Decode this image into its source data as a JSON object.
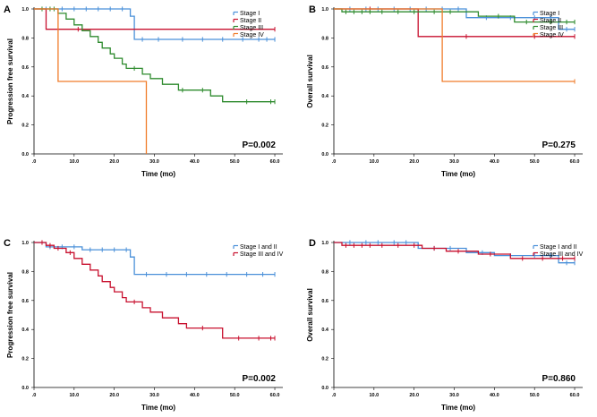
{
  "chart_data": [
    {
      "type": "line",
      "panel": "A",
      "xlabel": "Time (mo)",
      "ylabel": "Progression free survival",
      "xlim": [
        0,
        62
      ],
      "ylim": [
        0,
        1.0
      ],
      "x_ticks": [
        0,
        10,
        20,
        30,
        40,
        50,
        60
      ],
      "x_tick_labels": [
        ".0",
        "10.0",
        "20.0",
        "30.0",
        "40.0",
        "50.0",
        "60.0"
      ],
      "y_ticks": [
        0,
        0.2,
        0.4,
        0.6,
        0.8,
        1.0
      ],
      "y_tick_labels": [
        "0.0",
        "0.2",
        "0.4",
        "0.6",
        "0.8",
        "1.0"
      ],
      "p_value": "P=0.002",
      "legend_position": "top-right",
      "series": [
        {
          "name": "Stage I",
          "color": "#4a90d9",
          "points": [
            [
              0,
              1.0
            ],
            [
              24,
              1.0
            ],
            [
              24,
              0.95
            ],
            [
              25,
              0.95
            ],
            [
              25,
              0.79
            ],
            [
              60,
              0.79
            ]
          ],
          "censored": [
            3,
            7,
            10,
            13,
            16,
            19,
            22,
            27,
            31,
            37,
            42,
            47,
            52,
            56,
            58,
            60
          ]
        },
        {
          "name": "Stage II",
          "color": "#c8102e",
          "points": [
            [
              0,
              1.0
            ],
            [
              3,
              1.0
            ],
            [
              3,
              0.86
            ],
            [
              60,
              0.86
            ]
          ],
          "censored": [
            11,
            60
          ]
        },
        {
          "name": "Stage III",
          "color": "#2e8b2e",
          "points": [
            [
              0,
              1.0
            ],
            [
              6,
              1.0
            ],
            [
              6,
              0.97
            ],
            [
              8,
              0.97
            ],
            [
              8,
              0.93
            ],
            [
              10,
              0.93
            ],
            [
              10,
              0.89
            ],
            [
              12,
              0.89
            ],
            [
              12,
              0.85
            ],
            [
              14,
              0.85
            ],
            [
              14,
              0.81
            ],
            [
              16,
              0.81
            ],
            [
              16,
              0.77
            ],
            [
              17,
              0.77
            ],
            [
              17,
              0.73
            ],
            [
              19,
              0.73
            ],
            [
              19,
              0.69
            ],
            [
              20,
              0.69
            ],
            [
              20,
              0.66
            ],
            [
              22,
              0.66
            ],
            [
              22,
              0.62
            ],
            [
              23,
              0.62
            ],
            [
              23,
              0.59
            ],
            [
              27,
              0.59
            ],
            [
              27,
              0.55
            ],
            [
              29,
              0.55
            ],
            [
              29,
              0.52
            ],
            [
              32,
              0.52
            ],
            [
              32,
              0.48
            ],
            [
              36,
              0.48
            ],
            [
              36,
              0.44
            ],
            [
              44,
              0.44
            ],
            [
              44,
              0.4
            ],
            [
              47,
              0.4
            ],
            [
              47,
              0.36
            ],
            [
              60,
              0.36
            ]
          ],
          "censored": [
            2,
            4,
            5,
            25,
            37,
            42,
            53,
            59,
            60
          ]
        },
        {
          "name": "Stage IV",
          "color": "#f07c2a",
          "points": [
            [
              0,
              1.0
            ],
            [
              6,
              1.0
            ],
            [
              6,
              0.5
            ],
            [
              28,
              0.5
            ],
            [
              28,
              0.0
            ]
          ],
          "censored": []
        }
      ]
    },
    {
      "type": "line",
      "panel": "B",
      "xlabel": "Time (mo)",
      "ylabel": "Overall survival",
      "xlim": [
        0,
        62
      ],
      "ylim": [
        0,
        1.0
      ],
      "x_ticks": [
        0,
        10,
        20,
        30,
        40,
        50,
        60
      ],
      "x_tick_labels": [
        ".0",
        "10.0",
        "20.0",
        "30.0",
        "40.0",
        "50.0",
        "60.0"
      ],
      "y_ticks": [
        0,
        0.2,
        0.4,
        0.6,
        0.8,
        1.0
      ],
      "y_tick_labels": [
        "0.0",
        "0.2",
        "0.4",
        "0.6",
        "0.8",
        "1.0"
      ],
      "p_value": "P=0.275",
      "legend_position": "top-right",
      "series": [
        {
          "name": "Stage I",
          "color": "#4a90d9",
          "points": [
            [
              0,
              1.0
            ],
            [
              33,
              1.0
            ],
            [
              33,
              0.94
            ],
            [
              56,
              0.94
            ],
            [
              56,
              0.86
            ],
            [
              60,
              0.86
            ]
          ],
          "censored": [
            4,
            8,
            11,
            15,
            19,
            23,
            27,
            31,
            38,
            44,
            50,
            54,
            58,
            60
          ]
        },
        {
          "name": "Stage II",
          "color": "#c8102e",
          "points": [
            [
              0,
              1.0
            ],
            [
              21,
              1.0
            ],
            [
              21,
              0.81
            ],
            [
              60,
              0.81
            ]
          ],
          "censored": [
            9,
            33,
            50,
            60
          ]
        },
        {
          "name": "Stage III",
          "color": "#2e8b2e",
          "points": [
            [
              0,
              1.0
            ],
            [
              2,
              1.0
            ],
            [
              2,
              0.98
            ],
            [
              36,
              0.98
            ],
            [
              36,
              0.95
            ],
            [
              45,
              0.95
            ],
            [
              45,
              0.91
            ],
            [
              60,
              0.91
            ]
          ],
          "censored": [
            3,
            5,
            7,
            9,
            12,
            16,
            20,
            25,
            29,
            41,
            48,
            54,
            58,
            60
          ]
        },
        {
          "name": "Stage IV",
          "color": "#f07c2a",
          "points": [
            [
              0,
              1.0
            ],
            [
              27,
              1.0
            ],
            [
              27,
              0.5
            ],
            [
              60,
              0.5
            ]
          ],
          "censored": [
            60
          ]
        }
      ]
    },
    {
      "type": "line",
      "panel": "C",
      "xlabel": "Time (mo)",
      "ylabel": "Progression free survival",
      "xlim": [
        0,
        62
      ],
      "ylim": [
        0,
        1.0
      ],
      "x_ticks": [
        0,
        10,
        20,
        30,
        40,
        50,
        60
      ],
      "x_tick_labels": [
        ".0",
        "10.0",
        "20.0",
        "30.0",
        "40.0",
        "50.0",
        "60.0"
      ],
      "y_ticks": [
        0,
        0.2,
        0.4,
        0.6,
        0.8,
        1.0
      ],
      "y_tick_labels": [
        "0.0",
        "0.2",
        "0.4",
        "0.6",
        "0.8",
        "1.0"
      ],
      "p_value": "P=0.002",
      "legend_position": "top-right",
      "series": [
        {
          "name": "Stage I and II",
          "color": "#4a90d9",
          "points": [
            [
              0,
              1.0
            ],
            [
              3,
              1.0
            ],
            [
              3,
              0.97
            ],
            [
              12,
              0.97
            ],
            [
              12,
              0.95
            ],
            [
              24,
              0.95
            ],
            [
              24,
              0.9
            ],
            [
              25,
              0.9
            ],
            [
              25,
              0.78
            ],
            [
              60,
              0.78
            ]
          ],
          "censored": [
            4,
            7,
            10,
            14,
            17,
            20,
            23,
            28,
            33,
            38,
            43,
            48,
            53,
            57,
            60
          ]
        },
        {
          "name": "Stage III and IV",
          "color": "#c8102e",
          "points": [
            [
              0,
              1.0
            ],
            [
              3,
              1.0
            ],
            [
              3,
              0.98
            ],
            [
              5,
              0.98
            ],
            [
              5,
              0.96
            ],
            [
              8,
              0.96
            ],
            [
              8,
              0.93
            ],
            [
              10,
              0.93
            ],
            [
              10,
              0.89
            ],
            [
              12,
              0.89
            ],
            [
              12,
              0.85
            ],
            [
              14,
              0.85
            ],
            [
              14,
              0.81
            ],
            [
              16,
              0.81
            ],
            [
              16,
              0.77
            ],
            [
              17,
              0.77
            ],
            [
              17,
              0.73
            ],
            [
              19,
              0.73
            ],
            [
              19,
              0.69
            ],
            [
              20,
              0.69
            ],
            [
              20,
              0.66
            ],
            [
              22,
              0.66
            ],
            [
              22,
              0.62
            ],
            [
              23,
              0.62
            ],
            [
              23,
              0.59
            ],
            [
              27,
              0.59
            ],
            [
              27,
              0.55
            ],
            [
              29,
              0.55
            ],
            [
              29,
              0.52
            ],
            [
              32,
              0.52
            ],
            [
              32,
              0.48
            ],
            [
              36,
              0.48
            ],
            [
              36,
              0.44
            ],
            [
              38,
              0.44
            ],
            [
              38,
              0.41
            ],
            [
              47,
              0.41
            ],
            [
              47,
              0.34
            ],
            [
              60,
              0.34
            ]
          ],
          "censored": [
            2,
            4,
            6,
            9,
            25,
            42,
            51,
            56,
            59,
            60
          ]
        }
      ]
    },
    {
      "type": "line",
      "panel": "D",
      "xlabel": "Time (mo)",
      "ylabel": "Overall survival",
      "xlim": [
        0,
        62
      ],
      "ylim": [
        0,
        1.0
      ],
      "x_ticks": [
        0,
        10,
        20,
        30,
        40,
        50,
        60
      ],
      "x_tick_labels": [
        ".0",
        "10.0",
        "20.0",
        "30.0",
        "40.0",
        "50.0",
        "60.0"
      ],
      "y_ticks": [
        0,
        0.2,
        0.4,
        0.6,
        0.8,
        1.0
      ],
      "y_tick_labels": [
        "0.0",
        "0.2",
        "0.4",
        "0.6",
        "0.8",
        "1.0"
      ],
      "p_value": "P=0.860",
      "legend_position": "top-right",
      "series": [
        {
          "name": "Stage I and II",
          "color": "#4a90d9",
          "points": [
            [
              0,
              1.0
            ],
            [
              21,
              1.0
            ],
            [
              21,
              0.96
            ],
            [
              33,
              0.96
            ],
            [
              33,
              0.93
            ],
            [
              40,
              0.93
            ],
            [
              40,
              0.91
            ],
            [
              56,
              0.91
            ],
            [
              56,
              0.86
            ],
            [
              60,
              0.86
            ]
          ],
          "censored": [
            4,
            8,
            11,
            15,
            18,
            25,
            29,
            37,
            44,
            50,
            54,
            58,
            60
          ]
        },
        {
          "name": "Stage III and IV",
          "color": "#c8102e",
          "points": [
            [
              0,
              1.0
            ],
            [
              2,
              1.0
            ],
            [
              2,
              0.98
            ],
            [
              22,
              0.98
            ],
            [
              22,
              0.96
            ],
            [
              28,
              0.96
            ],
            [
              28,
              0.94
            ],
            [
              36,
              0.94
            ],
            [
              36,
              0.92
            ],
            [
              44,
              0.92
            ],
            [
              44,
              0.89
            ],
            [
              60,
              0.89
            ]
          ],
          "censored": [
            3,
            5,
            7,
            9,
            12,
            16,
            20,
            25,
            31,
            39,
            47,
            52,
            57,
            60
          ]
        }
      ]
    }
  ]
}
